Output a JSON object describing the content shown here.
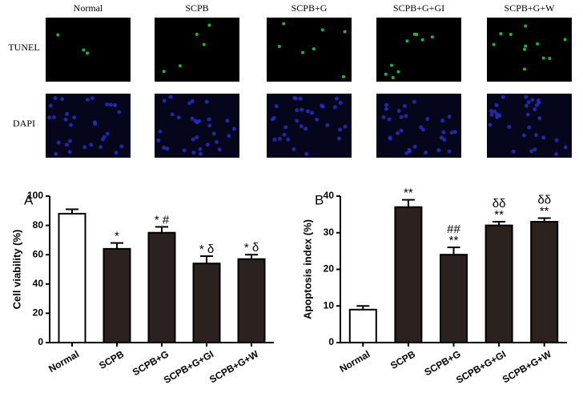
{
  "microscopy": {
    "columns": [
      "Normal",
      "SCPB",
      "SCPB+G",
      "SCPB+G+GI",
      "SCPB+G+W"
    ],
    "rows": [
      "TUNEL",
      "DAPI"
    ]
  },
  "chart_data": [
    {
      "type": "bar",
      "panel": "A",
      "y_label": "Cell viability (%)",
      "categories": [
        "Normal",
        "SCPB",
        "SCPB+G",
        "SCPB+G+GI",
        "SCPB+G+W"
      ],
      "values": [
        88,
        64,
        75,
        54,
        57
      ],
      "errors": [
        3,
        4,
        4,
        5,
        3
      ],
      "colors": [
        "#ffffff",
        "#2b211f",
        "#2b211f",
        "#2b211f",
        "#2b211f"
      ],
      "annotations": [
        {
          "index": 1,
          "lines": [
            "*"
          ]
        },
        {
          "index": 2,
          "lines": [
            "* #"
          ]
        },
        {
          "index": 3,
          "lines": [
            "* δ"
          ]
        },
        {
          "index": 4,
          "lines": [
            "* δ"
          ]
        }
      ],
      "ylim": [
        0,
        100
      ],
      "yticks": [
        0,
        20,
        40,
        60,
        80,
        100
      ]
    },
    {
      "type": "bar",
      "panel": "B",
      "y_label": "Apoptosis index (%)",
      "categories": [
        "Normal",
        "SCPB",
        "SCPB+G",
        "SCPB+G+GI",
        "SCPB+G+W"
      ],
      "values": [
        9,
        37,
        24,
        32,
        33
      ],
      "errors": [
        1,
        2,
        2,
        1,
        1
      ],
      "colors": [
        "#ffffff",
        "#2b211f",
        "#2b211f",
        "#2b211f",
        "#2b211f"
      ],
      "annotations": [
        {
          "index": 1,
          "lines": [
            "**"
          ]
        },
        {
          "index": 2,
          "lines": [
            "##",
            "**"
          ]
        },
        {
          "index": 3,
          "lines": [
            "δδ",
            "**"
          ]
        },
        {
          "index": 4,
          "lines": [
            "δδ",
            "**"
          ]
        }
      ],
      "ylim": [
        0,
        40
      ],
      "yticks": [
        0,
        10,
        20,
        30,
        40
      ]
    }
  ]
}
